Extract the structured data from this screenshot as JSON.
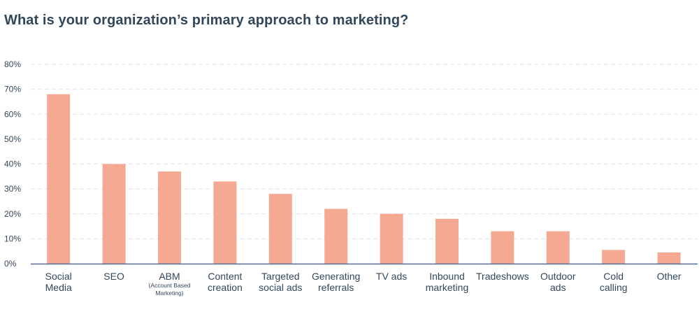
{
  "chart_data": {
    "type": "bar",
    "title": "What is your organization’s primary approach to marketing?",
    "xlabel": "",
    "ylabel": "",
    "ylim": [
      0,
      80
    ],
    "ytick_format": "percent",
    "yticks": [
      0,
      10,
      20,
      30,
      40,
      50,
      60,
      70,
      80
    ],
    "ytick_labels": [
      "0%",
      "10%",
      "20%",
      "30%",
      "40%",
      "50%",
      "60%",
      "70%",
      "80%"
    ],
    "grid": true,
    "legend": "none",
    "categories": [
      {
        "lines": [
          "Social",
          "Media"
        ],
        "sub": []
      },
      {
        "lines": [
          "SEO"
        ],
        "sub": []
      },
      {
        "lines": [
          "ABM"
        ],
        "sub": [
          "(Account Based",
          "Marketing)"
        ]
      },
      {
        "lines": [
          "Content",
          "creation"
        ],
        "sub": []
      },
      {
        "lines": [
          "Targeted",
          "social ads"
        ],
        "sub": []
      },
      {
        "lines": [
          "Generating",
          "referrals"
        ],
        "sub": []
      },
      {
        "lines": [
          "TV ads"
        ],
        "sub": []
      },
      {
        "lines": [
          "Inbound",
          "marketing"
        ],
        "sub": []
      },
      {
        "lines": [
          "Tradeshows"
        ],
        "sub": []
      },
      {
        "lines": [
          "Outdoor",
          "ads"
        ],
        "sub": []
      },
      {
        "lines": [
          "Cold",
          "calling"
        ],
        "sub": []
      },
      {
        "lines": [
          "Other"
        ],
        "sub": []
      }
    ],
    "values": [
      68,
      40,
      37,
      33,
      28,
      22,
      20,
      18,
      13,
      13,
      5.5,
      4.5
    ]
  },
  "colors": {
    "bar": "#f5a892",
    "axis": "#516f90",
    "grid": "#dfe3eb",
    "text": "#33475b"
  }
}
